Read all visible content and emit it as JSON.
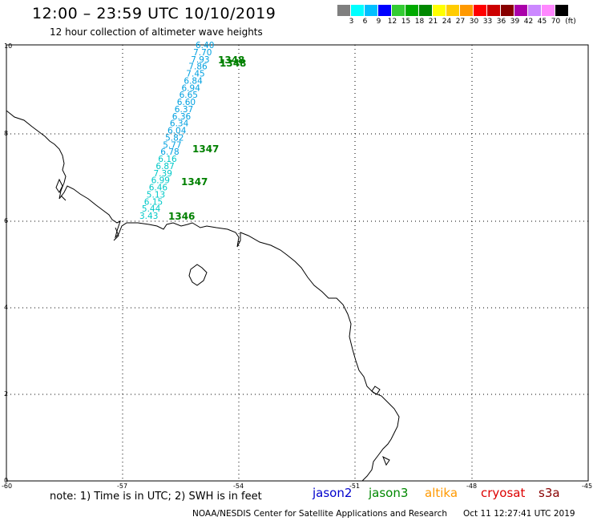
{
  "header": {
    "title": "12:00 – 23:59 UTC 10/10/2019",
    "subtitle": "12 hour collection of altimeter wave heights"
  },
  "color_scale": {
    "colors": [
      "#7f7f7f",
      "#00ffff",
      "#00bfff",
      "#0000ff",
      "#33cc33",
      "#00aa00",
      "#008800",
      "#ffff00",
      "#ffcc00",
      "#ff9900",
      "#ff0000",
      "#cc0000",
      "#880000",
      "#aa00aa",
      "#cc88ff",
      "#ff88ff",
      "#000000"
    ],
    "labels": [
      "3",
      "6",
      "9",
      "12",
      "15",
      "18",
      "21",
      "24",
      "27",
      "30",
      "33",
      "36",
      "39",
      "42",
      "45",
      "70"
    ],
    "unit": "(ft)"
  },
  "axes": {
    "lon_ticks": [
      "-60",
      "-57",
      "-54",
      "-51",
      "-48",
      "-45"
    ],
    "lat_ticks": [
      "0",
      "2",
      "4",
      "6",
      "8",
      "10"
    ]
  },
  "observations": {
    "color_light": "#00c8c8",
    "color_blue": "#00a0e0",
    "values": [
      "6.40",
      "7.70",
      "7.93",
      "7.86",
      "7.45",
      "6.84",
      "6.94",
      "6.65",
      "6.60",
      "6.37",
      "6.36",
      "6.34",
      "6.04",
      "5.82",
      "5.77",
      "6.78",
      "6.16",
      "6.87",
      "7.39",
      "6.99",
      "6.46",
      "5.13",
      "6.15",
      "5.44",
      "3.43"
    ]
  },
  "pass_labels": {
    "color": "#008000",
    "items": [
      "1348",
      "1348",
      "1347",
      "1347",
      "1346"
    ]
  },
  "footer": {
    "note": "note: 1) Time is in UTC; 2) SWH is in feet",
    "legend": [
      {
        "name": "jason2",
        "color": "#0000cc"
      },
      {
        "name": "jason3",
        "color": "#008800"
      },
      {
        "name": "altika",
        "color": "#ff9900"
      },
      {
        "name": "cryosat",
        "color": "#dd0000"
      },
      {
        "name": "s3a",
        "color": "#880000"
      }
    ],
    "credit": "NOAA/NESDIS Center for Satellite Applications and Research",
    "timestamp": "Oct 11 12:27:41 UTC 2019"
  }
}
